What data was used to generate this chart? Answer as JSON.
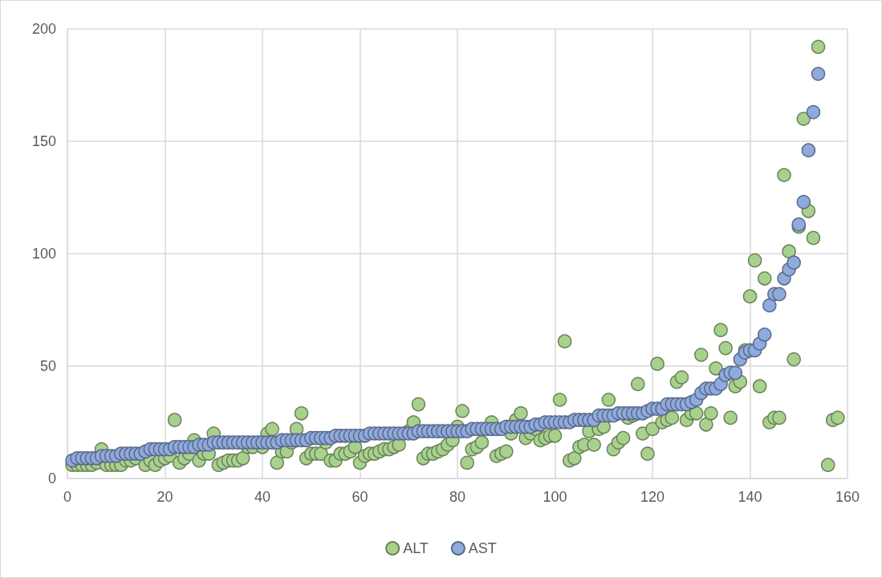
{
  "chart_data": {
    "type": "scatter",
    "xlim": [
      0,
      160
    ],
    "xticks": [
      0,
      20,
      40,
      60,
      80,
      100,
      120,
      140,
      160
    ],
    "ylim": [
      0,
      200
    ],
    "yticks": [
      0,
      50,
      100,
      150,
      200
    ],
    "grid": true,
    "legend": "bottom",
    "marker": "circle",
    "series": [
      {
        "name": "ALT",
        "color": "#a9d18e",
        "x": [
          1,
          2,
          3,
          4,
          5,
          6,
          7,
          8,
          9,
          10,
          11,
          12,
          13,
          14,
          15,
          16,
          17,
          18,
          19,
          20,
          21,
          22,
          23,
          24,
          25,
          26,
          27,
          28,
          29,
          30,
          31,
          32,
          33,
          34,
          35,
          36,
          37,
          38,
          39,
          40,
          41,
          42,
          43,
          44,
          45,
          46,
          47,
          48,
          49,
          50,
          51,
          52,
          53,
          54,
          55,
          56,
          57,
          58,
          59,
          60,
          61,
          62,
          63,
          64,
          65,
          66,
          67,
          68,
          69,
          70,
          71,
          72,
          73,
          74,
          75,
          76,
          77,
          78,
          79,
          80,
          81,
          82,
          83,
          84,
          85,
          86,
          87,
          88,
          89,
          90,
          91,
          92,
          93,
          94,
          95,
          96,
          97,
          98,
          99,
          100,
          101,
          102,
          103,
          104,
          105,
          106,
          107,
          108,
          109,
          110,
          111,
          112,
          113,
          114,
          115,
          116,
          117,
          118,
          119,
          120,
          121,
          122,
          123,
          124,
          125,
          126,
          127,
          128,
          129,
          130,
          131,
          132,
          133,
          134,
          135,
          136,
          137,
          138,
          139,
          140,
          141,
          142,
          143,
          144,
          145,
          146,
          147,
          148,
          149,
          150,
          151,
          152,
          153,
          154,
          155,
          156,
          157,
          158
        ],
        "values": [
          6,
          6,
          6,
          6,
          6,
          7,
          13,
          6,
          6,
          6,
          6,
          8,
          8,
          9,
          null,
          6,
          8,
          6,
          8,
          9,
          10,
          26,
          7,
          9,
          11,
          17,
          8,
          11,
          11,
          20,
          6,
          7,
          8,
          8,
          8,
          9,
          14,
          14,
          null,
          14,
          20,
          22,
          7,
          12,
          12,
          16,
          22,
          29,
          9,
          11,
          11,
          11,
          16,
          8,
          8,
          11,
          11,
          12,
          14,
          7,
          10,
          11,
          11,
          12,
          13,
          13,
          14,
          15,
          null,
          21,
          25,
          33,
          9,
          11,
          11,
          12,
          13,
          15,
          17,
          23,
          30,
          7,
          13,
          14,
          16,
          null,
          25,
          10,
          11,
          12,
          20,
          26,
          29,
          18,
          20,
          22,
          17,
          18,
          19,
          19,
          35,
          61,
          8,
          9,
          14,
          15,
          21,
          15,
          22,
          23,
          35,
          13,
          16,
          18,
          27,
          28,
          42,
          20,
          11,
          22,
          51,
          25,
          26,
          27,
          43,
          45,
          26,
          29,
          29,
          55,
          24,
          29,
          49,
          66,
          58,
          27,
          41,
          43,
          57,
          81,
          97,
          41,
          89,
          25,
          27,
          27,
          135,
          101,
          53,
          112,
          160,
          119,
          107,
          192,
          null,
          6,
          26,
          27
        ]
      },
      {
        "name": "AST",
        "color": "#8faadc",
        "x": [
          1,
          2,
          3,
          4,
          5,
          6,
          7,
          8,
          9,
          10,
          11,
          12,
          13,
          14,
          15,
          16,
          17,
          18,
          19,
          20,
          21,
          22,
          23,
          24,
          25,
          26,
          27,
          28,
          29,
          30,
          31,
          32,
          33,
          34,
          35,
          36,
          37,
          38,
          39,
          40,
          41,
          42,
          43,
          44,
          45,
          46,
          47,
          48,
          49,
          50,
          51,
          52,
          53,
          54,
          55,
          56,
          57,
          58,
          59,
          60,
          61,
          62,
          63,
          64,
          65,
          66,
          67,
          68,
          69,
          70,
          71,
          72,
          73,
          74,
          75,
          76,
          77,
          78,
          79,
          80,
          81,
          82,
          83,
          84,
          85,
          86,
          87,
          88,
          89,
          90,
          91,
          92,
          93,
          94,
          95,
          96,
          97,
          98,
          99,
          100,
          101,
          102,
          103,
          104,
          105,
          106,
          107,
          108,
          109,
          110,
          111,
          112,
          113,
          114,
          115,
          116,
          117,
          118,
          119,
          120,
          121,
          122,
          123,
          124,
          125,
          126,
          127,
          128,
          129,
          130,
          131,
          132,
          133,
          134,
          135,
          136,
          137,
          138,
          139,
          140,
          141,
          142,
          143,
          144,
          145,
          146,
          147,
          148,
          149,
          150,
          151,
          152,
          153,
          154
        ],
        "values": [
          8,
          9,
          9,
          9,
          9,
          9,
          10,
          10,
          10,
          10,
          11,
          11,
          11,
          11,
          11,
          12,
          13,
          13,
          13,
          13,
          13,
          14,
          14,
          14,
          14,
          14,
          15,
          15,
          15,
          16,
          16,
          16,
          16,
          16,
          16,
          16,
          16,
          16,
          16,
          16,
          16,
          16,
          16,
          17,
          17,
          17,
          17,
          17,
          17,
          18,
          18,
          18,
          18,
          18,
          19,
          19,
          19,
          19,
          19,
          19,
          19,
          20,
          20,
          20,
          20,
          20,
          20,
          20,
          20,
          20,
          20,
          21,
          21,
          21,
          21,
          21,
          21,
          21,
          21,
          21,
          21,
          21,
          22,
          22,
          22,
          22,
          22,
          22,
          22,
          23,
          23,
          23,
          23,
          23,
          23,
          24,
          24,
          25,
          25,
          25,
          25,
          25,
          25,
          26,
          26,
          26,
          26,
          26,
          28,
          28,
          28,
          28,
          29,
          29,
          29,
          29,
          29,
          29,
          30,
          31,
          31,
          31,
          33,
          33,
          33,
          33,
          33,
          34,
          35,
          38,
          40,
          40,
          40,
          42,
          46,
          47,
          47,
          53,
          56,
          57,
          57,
          60,
          64,
          77,
          82,
          82,
          89,
          93,
          96,
          113,
          123,
          146,
          163,
          180
        ]
      }
    ]
  }
}
